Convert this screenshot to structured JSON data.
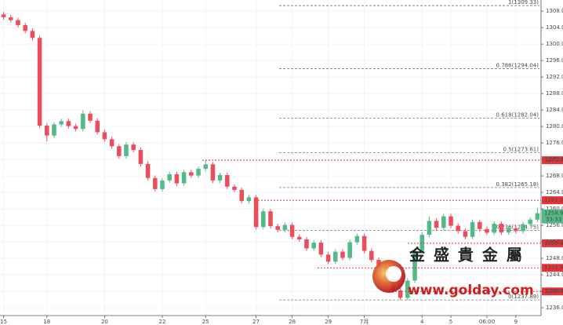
{
  "chart_data": {
    "type": "candlestick",
    "categories": [
      "15",
      null,
      null,
      null,
      null,
      null,
      "18",
      null,
      null,
      null,
      null,
      null,
      null,
      null,
      "20",
      null,
      null,
      null,
      null,
      null,
      null,
      null,
      "22",
      null,
      null,
      null,
      null,
      null,
      "25",
      null,
      null,
      null,
      null,
      null,
      null,
      "27",
      null,
      null,
      null,
      null,
      "28",
      null,
      null,
      null,
      null,
      "29",
      null,
      null,
      null,
      null,
      "7月",
      null,
      null,
      null,
      null,
      null,
      null,
      null,
      "4",
      null,
      null,
      null,
      "5",
      null,
      null,
      null,
      null,
      "06:00",
      null,
      null,
      null,
      "9",
      null,
      null,
      null
    ],
    "open": [
      1307.2,
      1306.5,
      1305.8,
      1304.6,
      1303.2,
      1301.5,
      1280.2,
      1277.8,
      1280.5,
      1281.3,
      1280.1,
      1279.4,
      1283.1,
      1281.4,
      1278.6,
      1276.9,
      1275.2,
      1272.8,
      1275.6,
      1274.3,
      1270.9,
      1267.5,
      1264.8,
      1266.9,
      1268.4,
      1266.2,
      1268.9,
      1268.1,
      1269.7,
      1270.8,
      1266.9,
      1268.2,
      1265.4,
      1264.6,
      1261.9,
      1262.8,
      1255.6,
      1259.4,
      1255.8,
      1254.9,
      1256.1,
      1253.2,
      1252.6,
      1250.4,
      1251.8,
      1248.9,
      1247.2,
      1249.6,
      1248.1,
      1251.9,
      1253.4,
      1249.8,
      1247.6,
      1245.9,
      1243.1,
      1240.2,
      1238.4,
      1242.6,
      1249.8,
      1253.7,
      1257.1,
      1255.4,
      1258.2,
      1255.9,
      1254.6,
      1253.2,
      1256.8,
      1255.1,
      1254.2,
      1256.4,
      1254.3,
      1255.2,
      1254.6,
      1256.3,
      1257.4
    ],
    "high": [
      1307.8,
      1307.1,
      1306.4,
      1305.2,
      1303.8,
      1302.1,
      1280.8,
      1281.1,
      1281.9,
      1281.9,
      1280.7,
      1283.9,
      1283.7,
      1282.0,
      1279.2,
      1277.5,
      1275.8,
      1276.2,
      1276.2,
      1274.9,
      1271.5,
      1268.1,
      1267.5,
      1269.0,
      1269.0,
      1269.5,
      1269.5,
      1270.3,
      1271.8,
      1271.4,
      1268.8,
      1268.8,
      1266.0,
      1265.2,
      1263.4,
      1263.4,
      1260.0,
      1260.0,
      1256.4,
      1256.7,
      1256.7,
      1253.8,
      1253.2,
      1252.4,
      1252.4,
      1249.5,
      1250.2,
      1250.2,
      1252.5,
      1254.0,
      1254.0,
      1250.4,
      1248.2,
      1246.5,
      1243.7,
      1240.8,
      1243.2,
      1250.4,
      1254.3,
      1258.2,
      1257.7,
      1258.8,
      1258.8,
      1256.5,
      1255.2,
      1257.4,
      1257.4,
      1255.7,
      1257.0,
      1257.0,
      1255.8,
      1255.8,
      1256.9,
      1258.0,
      1260.2
    ],
    "low": [
      1305.9,
      1305.2,
      1304.0,
      1302.6,
      1300.9,
      1279.6,
      1276.4,
      1277.2,
      1279.9,
      1279.5,
      1278.8,
      1278.8,
      1280.8,
      1278.0,
      1276.3,
      1274.6,
      1272.2,
      1272.2,
      1273.7,
      1270.3,
      1266.9,
      1264.2,
      1264.2,
      1266.3,
      1265.6,
      1265.6,
      1267.5,
      1267.5,
      1269.1,
      1266.3,
      1266.3,
      1264.8,
      1264.0,
      1261.3,
      1261.3,
      1255.0,
      1255.0,
      1255.2,
      1254.3,
      1254.3,
      1252.6,
      1252.0,
      1249.8,
      1249.8,
      1248.3,
      1246.6,
      1246.6,
      1247.5,
      1247.5,
      1251.3,
      1249.2,
      1247.0,
      1245.3,
      1242.5,
      1239.6,
      1237.9,
      1237.8,
      1242.0,
      1249.2,
      1253.1,
      1254.8,
      1254.8,
      1255.3,
      1254.0,
      1252.6,
      1252.6,
      1254.5,
      1253.6,
      1253.6,
      1253.7,
      1253.7,
      1254.0,
      1254.0,
      1255.7,
      1256.8
    ],
    "close": [
      1306.5,
      1305.8,
      1304.6,
      1303.2,
      1301.5,
      1280.2,
      1277.8,
      1280.5,
      1281.3,
      1280.1,
      1279.4,
      1283.1,
      1281.4,
      1278.6,
      1276.9,
      1275.2,
      1272.8,
      1275.6,
      1274.3,
      1270.9,
      1267.5,
      1264.8,
      1266.9,
      1268.4,
      1266.2,
      1268.9,
      1268.1,
      1269.7,
      1270.8,
      1266.9,
      1268.2,
      1265.4,
      1264.6,
      1261.9,
      1262.8,
      1255.6,
      1259.4,
      1255.8,
      1254.9,
      1256.1,
      1253.2,
      1252.6,
      1250.4,
      1251.8,
      1248.9,
      1247.2,
      1249.6,
      1248.1,
      1251.9,
      1253.4,
      1249.8,
      1247.6,
      1245.9,
      1243.1,
      1240.2,
      1238.4,
      1242.6,
      1249.8,
      1253.7,
      1257.1,
      1255.4,
      1258.2,
      1255.9,
      1254.6,
      1253.2,
      1256.8,
      1255.1,
      1254.2,
      1256.4,
      1254.3,
      1255.2,
      1254.6,
      1256.3,
      1257.4,
      1258.95
    ],
    "up_color": "#53b987",
    "down_color": "#eb4d5c",
    "ylim": [
      1234.1,
      1310.7
    ],
    "yticks": [
      {
        "value": 1236,
        "label": "1236.00"
      },
      {
        "value": 1240,
        "label": "1240.00"
      },
      {
        "value": 1244,
        "label": "1244.00"
      },
      {
        "value": 1248,
        "label": "1248.00"
      },
      {
        "value": 1252,
        "label": "1252.00"
      },
      {
        "value": 1256,
        "label": "1256.00"
      },
      {
        "value": 1260,
        "label": "1260.00"
      },
      {
        "value": 1264,
        "label": "1264.00"
      },
      {
        "value": 1268,
        "label": "1268.00"
      },
      {
        "value": 1272,
        "label": "1272.00"
      },
      {
        "value": 1276,
        "label": "1276.00"
      },
      {
        "value": 1280,
        "label": "1280.00"
      },
      {
        "value": 1284,
        "label": "1284.00"
      },
      {
        "value": 1288,
        "label": "1288.00"
      },
      {
        "value": 1292,
        "label": "1292.00"
      },
      {
        "value": 1296,
        "label": "1296.00"
      },
      {
        "value": 1300,
        "label": "1300.00"
      },
      {
        "value": 1304,
        "label": "1304.00"
      },
      {
        "value": 1308,
        "label": "1308.00"
      }
    ],
    "grid": true,
    "fib_levels": [
      {
        "value": 1309.33,
        "label": "1(1309.33)"
      },
      {
        "value": 1294.04,
        "label": "0.786(1294.04)"
      },
      {
        "value": 1282.04,
        "label": "0.618(1282.04)"
      },
      {
        "value": 1273.61,
        "label": "0.5(1273.61)"
      },
      {
        "value": 1265.18,
        "label": "0.382(1265.18)"
      },
      {
        "value": 1254.75,
        "label": "0.236(1254.75)"
      },
      {
        "value": 1237.89,
        "label": "0(1237.89)"
      }
    ],
    "price_lines": [
      1271.81,
      1262.09,
      1251.65,
      1245.68,
      1239.96
    ],
    "last_price": 1258.95,
    "countdown": "33:33",
    "watermark": {
      "name": "金 盛 貴 金 屬",
      "url": "www.golday.com"
    }
  }
}
